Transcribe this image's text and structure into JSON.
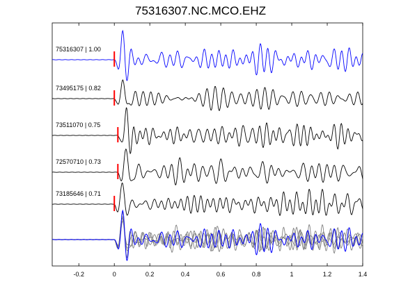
{
  "chart_data": {
    "type": "line",
    "title": "75316307.NC.MCO.EHZ",
    "xlabel": "",
    "ylabel": "",
    "xlim": [
      -0.35,
      1.4
    ],
    "xticks": [
      -0.2,
      0,
      0.2,
      0.4,
      0.6,
      0.8,
      1,
      1.2,
      1.4
    ],
    "xtick_labels": [
      "-0.2",
      "0",
      "0.2",
      "0.4",
      "0.6",
      "0.8",
      "1",
      "1.2",
      "1.4"
    ],
    "grid": false,
    "pick_time": 0,
    "colors": {
      "reference": "#0000ff",
      "trace": "#000000",
      "overlay": "#808080",
      "pick": "#ff0000",
      "axes": "#000000"
    },
    "series": [
      {
        "name": "75316307 | 1.00",
        "pick_offset": 0.0,
        "seed": 1,
        "color": "#0000ff"
      },
      {
        "name": "73495175 | 0.82",
        "pick_offset": 0.0,
        "seed": 2,
        "color": "#000000"
      },
      {
        "name": "73511070 | 0.75",
        "pick_offset": 0.02,
        "seed": 3,
        "color": "#000000"
      },
      {
        "name": "72570710 | 0.73",
        "pick_offset": 0.02,
        "seed": 4,
        "color": "#000000"
      },
      {
        "name": "73185646 | 0.71",
        "pick_offset": 0.0,
        "seed": 5,
        "color": "#000000"
      }
    ]
  }
}
